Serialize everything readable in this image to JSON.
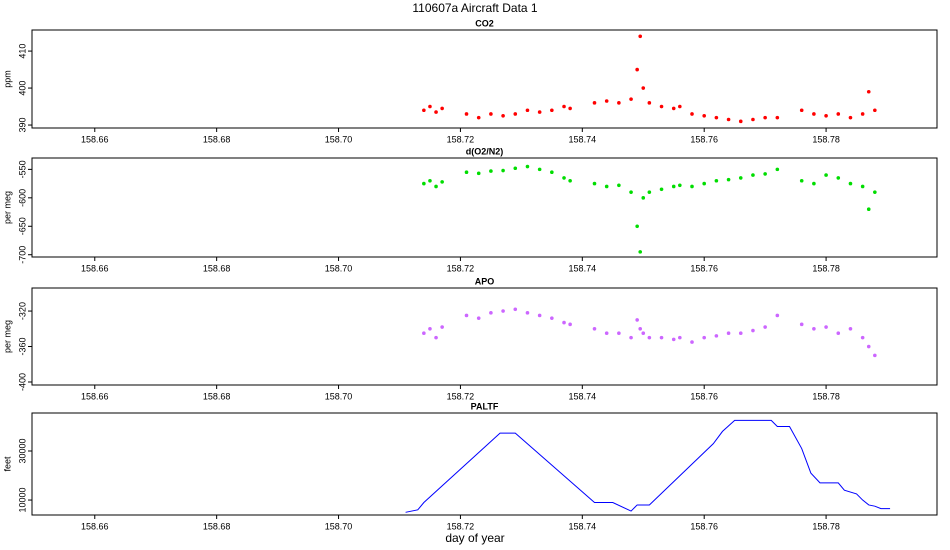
{
  "title": "110607a   Aircraft Data 1",
  "xlabel": "day of year",
  "chart_data": [
    {
      "type": "scatter",
      "title": "CO2",
      "ylabel": "ppm",
      "color": "#ff0000",
      "xlim": [
        158.6497,
        158.7982
      ],
      "xticks": [
        158.66,
        158.68,
        {
          "value": 158.7,
          "label": "158.70"
        },
        158.72,
        158.74,
        158.76,
        158.78
      ],
      "ylim": [
        389.2,
        415.7
      ],
      "yticks": [
        390,
        400,
        410
      ],
      "x": [
        158.714,
        158.715,
        158.716,
        158.717,
        158.721,
        158.723,
        158.725,
        158.727,
        158.729,
        158.731,
        158.733,
        158.735,
        158.737,
        158.738,
        158.742,
        158.744,
        158.746,
        158.748,
        158.749,
        158.7495,
        158.75,
        158.751,
        158.753,
        158.755,
        158.756,
        158.758,
        158.76,
        158.762,
        158.764,
        158.766,
        158.768,
        158.77,
        158.772,
        158.776,
        158.778,
        158.78,
        158.782,
        158.784,
        158.786,
        158.787,
        158.788
      ],
      "values": [
        394,
        395,
        393.5,
        394.5,
        393,
        392,
        393,
        392.5,
        393,
        394,
        393.5,
        394,
        395,
        394.5,
        396,
        396.5,
        396,
        397,
        405,
        414,
        400,
        396,
        395,
        394.5,
        395,
        393,
        392.5,
        392,
        391.5,
        391,
        391.5,
        392,
        392,
        394,
        393,
        392.5,
        393,
        392,
        393,
        399,
        394
      ]
    },
    {
      "type": "scatter",
      "title": "d(O2/N2)",
      "ylabel": "per meg",
      "color": "#00dd00",
      "xlim": [
        158.6497,
        158.7982
      ],
      "xticks": [
        158.66,
        158.68,
        {
          "value": 158.7,
          "label": "158.70"
        },
        158.72,
        158.74,
        158.76,
        158.78
      ],
      "ylim": [
        -704,
        -530
      ],
      "yticks": [
        -550,
        -600,
        -650,
        -700
      ],
      "x": [
        158.714,
        158.715,
        158.716,
        158.717,
        158.721,
        158.723,
        158.725,
        158.727,
        158.729,
        158.731,
        158.733,
        158.735,
        158.737,
        158.738,
        158.742,
        158.744,
        158.746,
        158.748,
        158.749,
        158.7495,
        158.75,
        158.751,
        158.753,
        158.755,
        158.756,
        158.758,
        158.76,
        158.762,
        158.764,
        158.766,
        158.768,
        158.77,
        158.772,
        158.776,
        158.778,
        158.78,
        158.782,
        158.784,
        158.786,
        158.787,
        158.788
      ],
      "values": [
        -575,
        -570,
        -580,
        -572,
        -555,
        -557,
        -553,
        -552,
        -548,
        -545,
        -550,
        -555,
        -565,
        -570,
        -575,
        -580,
        -578,
        -590,
        -650,
        -695,
        -600,
        -590,
        -585,
        -580,
        -578,
        -580,
        -575,
        -570,
        -568,
        -565,
        -560,
        -558,
        -550,
        -570,
        -575,
        -560,
        -565,
        -575,
        -580,
        -620,
        -590
      ]
    },
    {
      "type": "scatter",
      "title": "APO",
      "ylabel": "per meg",
      "color": "#cc66ff",
      "xlim": [
        158.6497,
        158.7982
      ],
      "xticks": [
        158.66,
        158.68,
        {
          "value": 158.7,
          "label": "158.70"
        },
        158.72,
        158.74,
        158.76,
        158.78
      ],
      "ylim": [
        -403.4,
        -294
      ],
      "yticks": [
        -320,
        -360,
        -400
      ],
      "x": [
        158.714,
        158.715,
        158.716,
        158.717,
        158.721,
        158.723,
        158.725,
        158.727,
        158.729,
        158.731,
        158.733,
        158.735,
        158.737,
        158.738,
        158.742,
        158.744,
        158.746,
        158.748,
        158.749,
        158.7495,
        158.75,
        158.751,
        158.753,
        158.755,
        158.756,
        158.758,
        158.76,
        158.762,
        158.764,
        158.766,
        158.768,
        158.77,
        158.772,
        158.776,
        158.778,
        158.78,
        158.782,
        158.784,
        158.786,
        158.787,
        158.788
      ],
      "values": [
        -345,
        -340,
        -350,
        -338,
        -325,
        -328,
        -322,
        -320,
        -318,
        -322,
        -325,
        -328,
        -333,
        -335,
        -340,
        -345,
        -345,
        -350,
        -330,
        -340,
        -345,
        -350,
        -350,
        -352,
        -350,
        -355,
        -350,
        -348,
        -345,
        -345,
        -342,
        -338,
        -325,
        -335,
        -340,
        -338,
        -345,
        -340,
        -350,
        -360,
        -370
      ]
    },
    {
      "type": "line",
      "title": "PALTF",
      "ylabel": "feet",
      "color": "#0000ff",
      "xlim": [
        158.6497,
        158.7982
      ],
      "xticks": [
        158.66,
        158.68,
        {
          "value": 158.7,
          "label": "158.70"
        },
        158.72,
        158.74,
        158.76,
        158.78
      ],
      "ylim": [
        3900,
        45500
      ],
      "yticks": [
        10000,
        30000
      ],
      "x": [
        158.711,
        158.713,
        158.714,
        158.7265,
        158.729,
        158.742,
        158.745,
        158.748,
        158.749,
        158.751,
        158.7615,
        158.763,
        158.765,
        158.771,
        158.772,
        158.774,
        158.776,
        158.7775,
        158.779,
        158.782,
        158.783,
        158.785,
        158.786,
        158.787,
        158.788,
        158.789,
        158.7905
      ],
      "values": [
        5000,
        6000,
        9000,
        37300,
        37300,
        9000,
        9000,
        5500,
        8000,
        8000,
        33000,
        38000,
        42500,
        42500,
        40000,
        40000,
        31000,
        21000,
        17000,
        17000,
        14000,
        12500,
        10000,
        8000,
        7500,
        6500,
        6500
      ]
    }
  ]
}
